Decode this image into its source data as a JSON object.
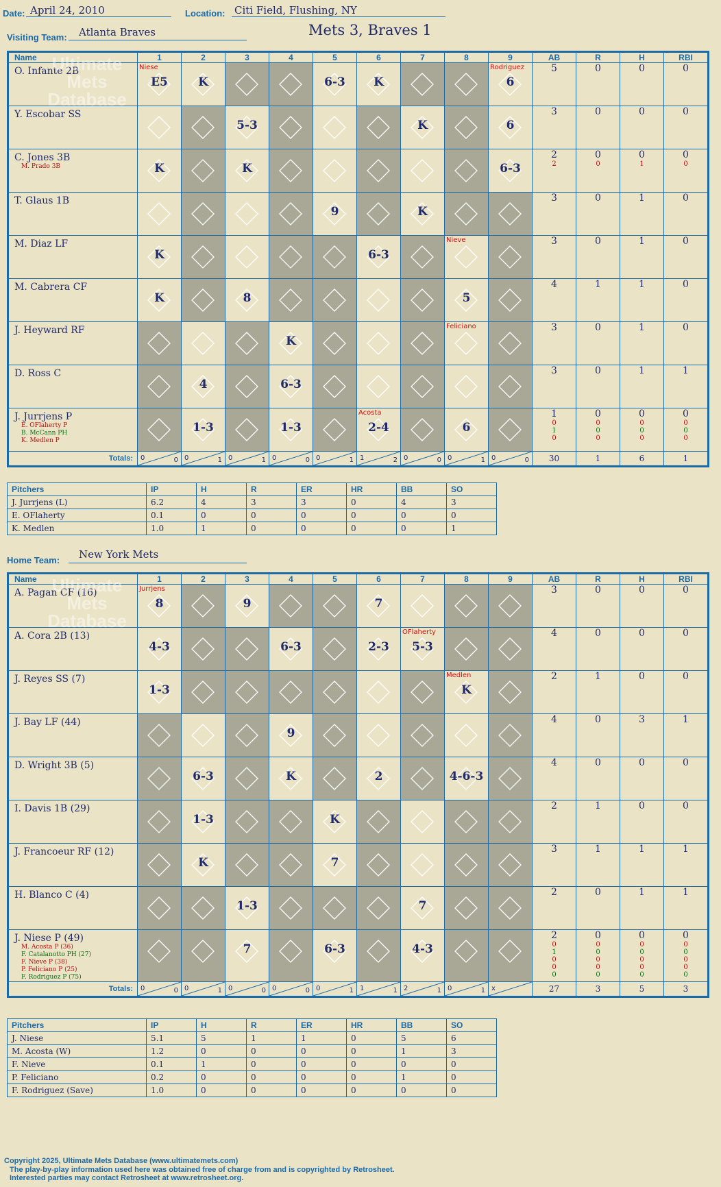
{
  "header": {
    "date_label": "Date:",
    "date": "April 24, 2010",
    "location_label": "Location:",
    "location": "Citi Field, Flushing, NY",
    "score": "Mets 3, Braves 1",
    "visiting_label": "Visiting Team:",
    "visiting_team": "Atlanta Braves",
    "home_label": "Home Team:",
    "home_team": "New York Mets"
  },
  "columns": {
    "name": "Name",
    "innings": [
      "1",
      "2",
      "3",
      "4",
      "5",
      "6",
      "7",
      "8",
      "9"
    ],
    "stats": [
      "AB",
      "R",
      "H",
      "RBI"
    ],
    "totals_label": "Totals:",
    "r_label": "R",
    "h_label": "H"
  },
  "visiting": {
    "players": [
      {
        "name": "O. Infante 2B",
        "stats": [
          "5",
          "0",
          "0",
          "0"
        ],
        "plays": {
          "1": "E5",
          "2": "K",
          "5": "6-3",
          "6": "K",
          "9": "6"
        },
        "notes": [
          {
            "inn": 1,
            "txt": "Niese",
            "cls": "red"
          },
          {
            "inn": 9,
            "txt": "Rodriguez",
            "cls": "red"
          }
        ]
      },
      {
        "name": "Y. Escobar SS",
        "stats": [
          "3",
          "0",
          "0",
          "0"
        ],
        "plays": {
          "3": "5-3",
          "7": "K",
          "9": "6"
        },
        "notes": []
      },
      {
        "name": "C. Jones 3B",
        "subs": [
          {
            "name": "M. Prado 3B",
            "cls": ""
          }
        ],
        "stats": [
          "2",
          "0",
          "0",
          "0"
        ],
        "stats2": [
          [
            "2",
            "0",
            "1",
            "0"
          ]
        ],
        "plays": {
          "1": "K",
          "3": "K",
          "9": "6-3"
        },
        "notes": []
      },
      {
        "name": "T. Glaus 1B",
        "stats": [
          "3",
          "0",
          "1",
          "0"
        ],
        "plays": {
          "5": "9",
          "7": "K"
        },
        "notes": []
      },
      {
        "name": "M. Diaz LF",
        "stats": [
          "3",
          "0",
          "1",
          "0"
        ],
        "plays": {
          "1": "K",
          "6": "6-3"
        },
        "notes": [
          {
            "inn": 8,
            "txt": "Nieve",
            "cls": "red"
          }
        ]
      },
      {
        "name": "M. Cabrera CF",
        "stats": [
          "4",
          "1",
          "1",
          "0"
        ],
        "plays": {
          "1": "K",
          "3": "8",
          "8": "5"
        },
        "notes": []
      },
      {
        "name": "J. Heyward RF",
        "stats": [
          "3",
          "0",
          "1",
          "0"
        ],
        "plays": {
          "4": "K"
        },
        "notes": [
          {
            "inn": 8,
            "txt": "Feliciano",
            "cls": "red"
          }
        ]
      },
      {
        "name": "D. Ross C",
        "stats": [
          "3",
          "0",
          "1",
          "1"
        ],
        "plays": {
          "2": "4",
          "4": "6-3"
        },
        "notes": []
      },
      {
        "name": "J. Jurrjens P",
        "subs": [
          {
            "name": "E. OFlaherty P",
            "cls": ""
          },
          {
            "name": "B. McCann PH",
            "cls": "g"
          },
          {
            "name": "K. Medlen P",
            "cls": ""
          }
        ],
        "stats": [
          "1",
          "0",
          "0",
          "0"
        ],
        "stats2": [
          [
            "0",
            "0",
            "0",
            "0"
          ],
          [
            "1",
            "0",
            "0",
            "0"
          ],
          [
            "0",
            "0",
            "0",
            "0"
          ]
        ],
        "plays": {
          "2": "1-3",
          "4": "1-3",
          "6": "2-4",
          "8": "6"
        },
        "notes": [
          {
            "inn": 6,
            "txt": "Acosta",
            "cls": "red"
          }
        ]
      }
    ],
    "totals": [
      [
        "0",
        "0"
      ],
      [
        "0",
        "1"
      ],
      [
        "0",
        "1"
      ],
      [
        "0",
        "0"
      ],
      [
        "0",
        "1"
      ],
      [
        "1",
        "2"
      ],
      [
        "0",
        "0"
      ],
      [
        "0",
        "1"
      ],
      [
        "0",
        "0"
      ]
    ],
    "totals_stats": [
      "30",
      "1",
      "6",
      "1"
    ]
  },
  "visiting_pitchers": {
    "headers": [
      "Pitchers",
      "IP",
      "H",
      "R",
      "ER",
      "HR",
      "BB",
      "SO"
    ],
    "rows": [
      [
        "J. Jurrjens (L)",
        "6.2",
        "4",
        "3",
        "3",
        "0",
        "4",
        "3"
      ],
      [
        "E. OFlaherty",
        "0.1",
        "0",
        "0",
        "0",
        "0",
        "0",
        "0"
      ],
      [
        "K. Medlen",
        "1.0",
        "1",
        "0",
        "0",
        "0",
        "0",
        "1"
      ]
    ]
  },
  "home": {
    "players": [
      {
        "name": "A. Pagan CF (16)",
        "stats": [
          "3",
          "0",
          "0",
          "0"
        ],
        "plays": {
          "1": "8",
          "3": "9",
          "6": "7"
        },
        "notes": [
          {
            "inn": 1,
            "txt": "Jurrjens",
            "cls": "red"
          }
        ]
      },
      {
        "name": "A. Cora 2B (13)",
        "stats": [
          "4",
          "0",
          "0",
          "0"
        ],
        "plays": {
          "1": "4-3",
          "4": "6-3",
          "6": "2-3",
          "7": "5-3"
        },
        "notes": [
          {
            "inn": 7,
            "txt": "OFlaherty",
            "cls": "red"
          }
        ]
      },
      {
        "name": "J. Reyes SS (7)",
        "stats": [
          "2",
          "1",
          "0",
          "0"
        ],
        "plays": {
          "1": "1-3",
          "8": "K"
        },
        "notes": [
          {
            "inn": 8,
            "txt": "Medlen",
            "cls": "red"
          }
        ]
      },
      {
        "name": "J. Bay LF (44)",
        "stats": [
          "4",
          "0",
          "3",
          "1"
        ],
        "plays": {
          "4": "9"
        },
        "notes": []
      },
      {
        "name": "D. Wright 3B (5)",
        "stats": [
          "4",
          "0",
          "0",
          "0"
        ],
        "plays": {
          "2": "6-3",
          "4": "K",
          "6": "2",
          "8": "4-6-3"
        },
        "notes": []
      },
      {
        "name": "I. Davis 1B (29)",
        "stats": [
          "2",
          "1",
          "0",
          "0"
        ],
        "plays": {
          "2": "1-3",
          "5": "K"
        },
        "notes": []
      },
      {
        "name": "J. Francoeur RF (12)",
        "stats": [
          "3",
          "1",
          "1",
          "1"
        ],
        "plays": {
          "2": "K",
          "5": "7"
        },
        "notes": []
      },
      {
        "name": "H. Blanco C (4)",
        "stats": [
          "2",
          "0",
          "1",
          "1"
        ],
        "plays": {
          "3": "1-3",
          "7": "7"
        },
        "notes": []
      },
      {
        "name": "J. Niese P (49)",
        "subs": [
          {
            "name": "M. Acosta P (36)",
            "cls": ""
          },
          {
            "name": "F. Catalanotto PH (27)",
            "cls": "g"
          },
          {
            "name": "F. Nieve P (38)",
            "cls": ""
          },
          {
            "name": "P. Feliciano P (25)",
            "cls": ""
          },
          {
            "name": "F. Rodriguez P (75)",
            "cls": "g"
          }
        ],
        "stats": [
          "2",
          "0",
          "0",
          "0"
        ],
        "stats2": [
          [
            "0",
            "0",
            "0",
            "0"
          ],
          [
            "1",
            "0",
            "0",
            "0"
          ],
          [
            "0",
            "0",
            "0",
            "0"
          ],
          [
            "0",
            "0",
            "0",
            "0"
          ],
          [
            "0",
            "0",
            "0",
            "0"
          ]
        ],
        "plays": {
          "3": "7",
          "5": "6-3",
          "7": "4-3"
        },
        "notes": []
      }
    ],
    "totals": [
      [
        "0",
        "0"
      ],
      [
        "0",
        "1"
      ],
      [
        "0",
        "0"
      ],
      [
        "0",
        "0"
      ],
      [
        "0",
        "1"
      ],
      [
        "1",
        "1"
      ],
      [
        "2",
        "1"
      ],
      [
        "0",
        "1"
      ],
      [
        "x",
        ""
      ]
    ],
    "totals_stats": [
      "27",
      "3",
      "5",
      "3"
    ]
  },
  "home_pitchers": {
    "headers": [
      "Pitchers",
      "IP",
      "H",
      "R",
      "ER",
      "HR",
      "BB",
      "SO"
    ],
    "rows": [
      [
        "J. Niese",
        "5.1",
        "5",
        "1",
        "1",
        "0",
        "5",
        "6"
      ],
      [
        "M. Acosta (W)",
        "1.2",
        "0",
        "0",
        "0",
        "0",
        "1",
        "3"
      ],
      [
        "F. Nieve",
        "0.1",
        "1",
        "0",
        "0",
        "0",
        "0",
        "0"
      ],
      [
        "P. Feliciano",
        "0.2",
        "0",
        "0",
        "0",
        "0",
        "1",
        "0"
      ],
      [
        "F. Rodriguez (Save)",
        "1.0",
        "0",
        "0",
        "0",
        "0",
        "0",
        "0"
      ]
    ]
  },
  "footer": {
    "line1": "Copyright 2025, Ultimate Mets Database (www.ultimatemets.com)",
    "line2": "The play-by-play information used here was obtained free of charge from and is copyrighted by Retrosheet.",
    "line3": "Interested parties may contact Retrosheet at www.retrosheet.org."
  },
  "watermark": "Ultimate Mets Database",
  "colors": {
    "accent": "#1b6aa8",
    "ink": "#1f2a6b",
    "paper": "#ebe3c6",
    "shade": "#a9a896",
    "red": "#b01010",
    "green": "#0a6a10"
  }
}
